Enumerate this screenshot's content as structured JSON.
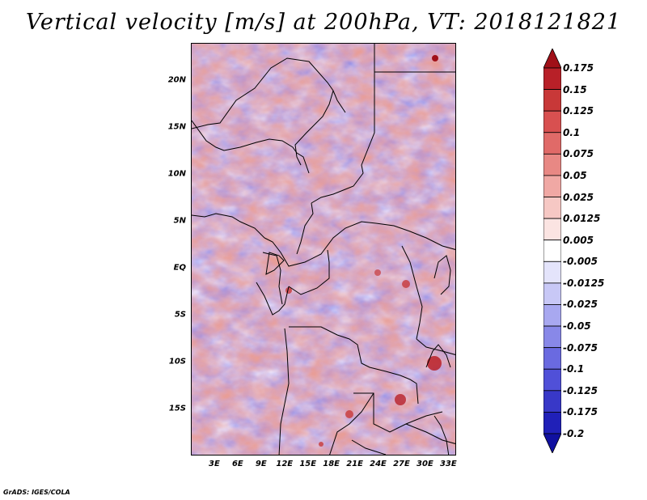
{
  "title": "Vertical velocity [m/s] at 200hPa, VT: 2018121821",
  "map": {
    "variable": "Vertical velocity",
    "units": "m/s",
    "level": "200hPa",
    "valid_time": "2018121821",
    "lon_range": [
      0,
      34
    ],
    "lat_range": [
      -20,
      24
    ],
    "y_ticks": [
      {
        "label": "20N",
        "lat": 20
      },
      {
        "label": "15N",
        "lat": 15
      },
      {
        "label": "10N",
        "lat": 10
      },
      {
        "label": "5N",
        "lat": 5
      },
      {
        "label": "EQ",
        "lat": 0
      },
      {
        "label": "5S",
        "lat": -5
      },
      {
        "label": "10S",
        "lat": -10
      },
      {
        "label": "15S",
        "lat": -15
      }
    ],
    "x_ticks": [
      {
        "label": "3E",
        "lon": 3
      },
      {
        "label": "6E",
        "lon": 6
      },
      {
        "label": "9E",
        "lon": 9
      },
      {
        "label": "12E",
        "lon": 12
      },
      {
        "label": "15E",
        "lon": 15
      },
      {
        "label": "18E",
        "lon": 18
      },
      {
        "label": "21E",
        "lon": 21
      },
      {
        "label": "24E",
        "lon": 24
      },
      {
        "label": "27E",
        "lon": 27
      },
      {
        "label": "30E",
        "lon": 30
      },
      {
        "label": "33E",
        "lon": 33
      }
    ]
  },
  "colorbar": {
    "labels": [
      "0.175",
      "0.15",
      "0.125",
      "0.1",
      "0.075",
      "0.05",
      "0.025",
      "0.0125",
      "0.005",
      "-0.005",
      "-0.0125",
      "-0.025",
      "-0.05",
      "-0.075",
      "-0.1",
      "-0.125",
      "-0.175",
      "-0.2"
    ],
    "colors": [
      "#a01018",
      "#b82028",
      "#c83838",
      "#d85050",
      "#e06a68",
      "#e88884",
      "#f0a8a4",
      "#f6c8c4",
      "#fbe4e2",
      "#ffffff",
      "#e4e4fb",
      "#c8c8f6",
      "#a8a8f0",
      "#8888e8",
      "#6a6ae0",
      "#5050d8",
      "#3838c8",
      "#2020b8",
      "#1010a0"
    ]
  },
  "credit": "GrADS: IGES/COLA"
}
